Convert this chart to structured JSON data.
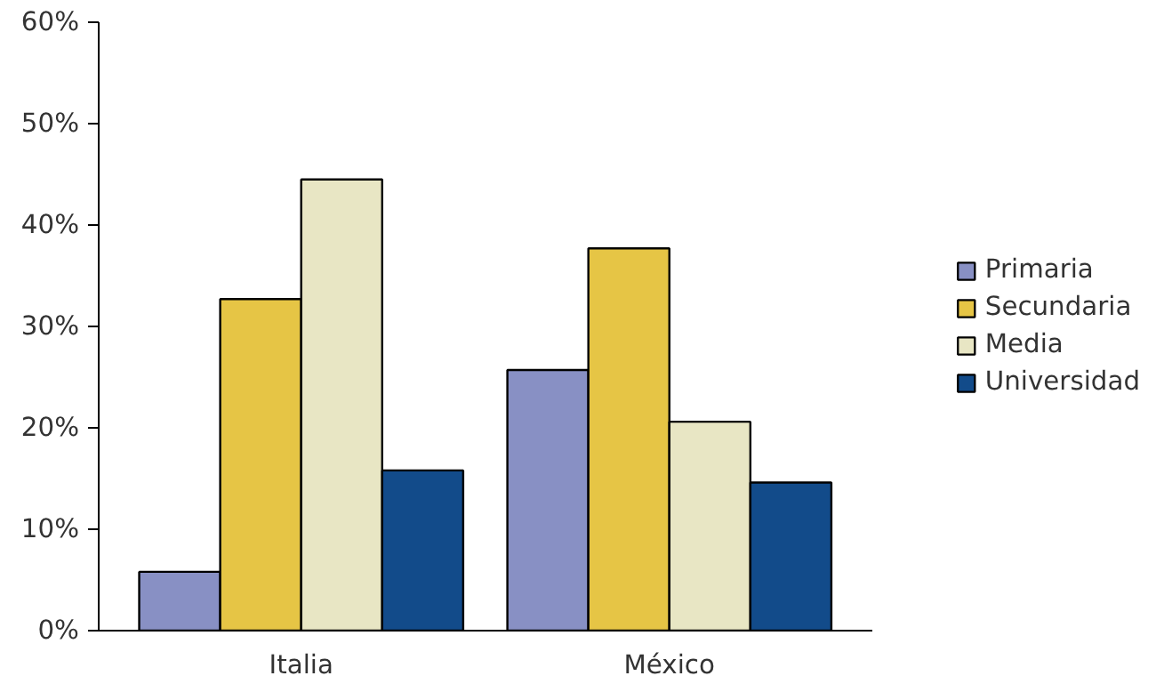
{
  "chart_data": {
    "type": "bar",
    "categories": [
      "Italia",
      "México"
    ],
    "series": [
      {
        "name": "Primaria",
        "color": "#8890c4",
        "values": [
          5.8,
          25.7
        ]
      },
      {
        "name": "Secundaria",
        "color": "#e6c545",
        "values": [
          32.7,
          37.7
        ]
      },
      {
        "name": "Media",
        "color": "#e8e6c4",
        "values": [
          44.5,
          20.6
        ]
      },
      {
        "name": "Universidad",
        "color": "#124b8a",
        "values": [
          15.8,
          14.6
        ]
      }
    ],
    "ylim": [
      0,
      60
    ],
    "yticks": [
      {
        "value": 0,
        "label": "0%"
      },
      {
        "value": 10,
        "label": "10%"
      },
      {
        "value": 20,
        "label": "20%"
      },
      {
        "value": 30,
        "label": "30%"
      },
      {
        "value": 40,
        "label": "40%"
      },
      {
        "value": 50,
        "label": "50%"
      },
      {
        "value": 60,
        "label": "60%"
      }
    ],
    "grid": false,
    "legend": "right"
  }
}
